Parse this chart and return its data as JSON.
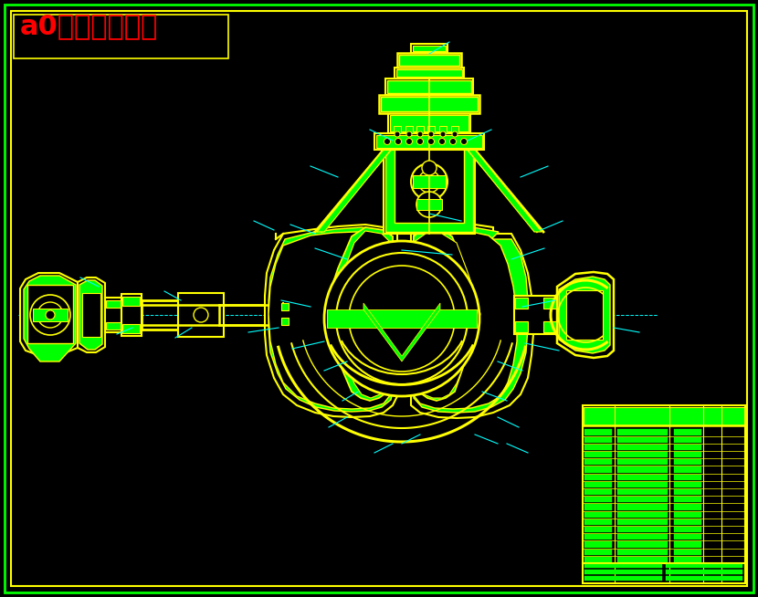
{
  "bg_color": "#000000",
  "outer_border_color": "#00ff00",
  "inner_border_color": "#ffff00",
  "title_text": "a0驱动桥装配图",
  "title_color": "#ff0000",
  "title_fontsize": 22,
  "drawing_color": "#ffff00",
  "green_fill": "#00ff00",
  "cyan_color": "#00ffff",
  "fig_width": 8.3,
  "fig_height": 6.54
}
